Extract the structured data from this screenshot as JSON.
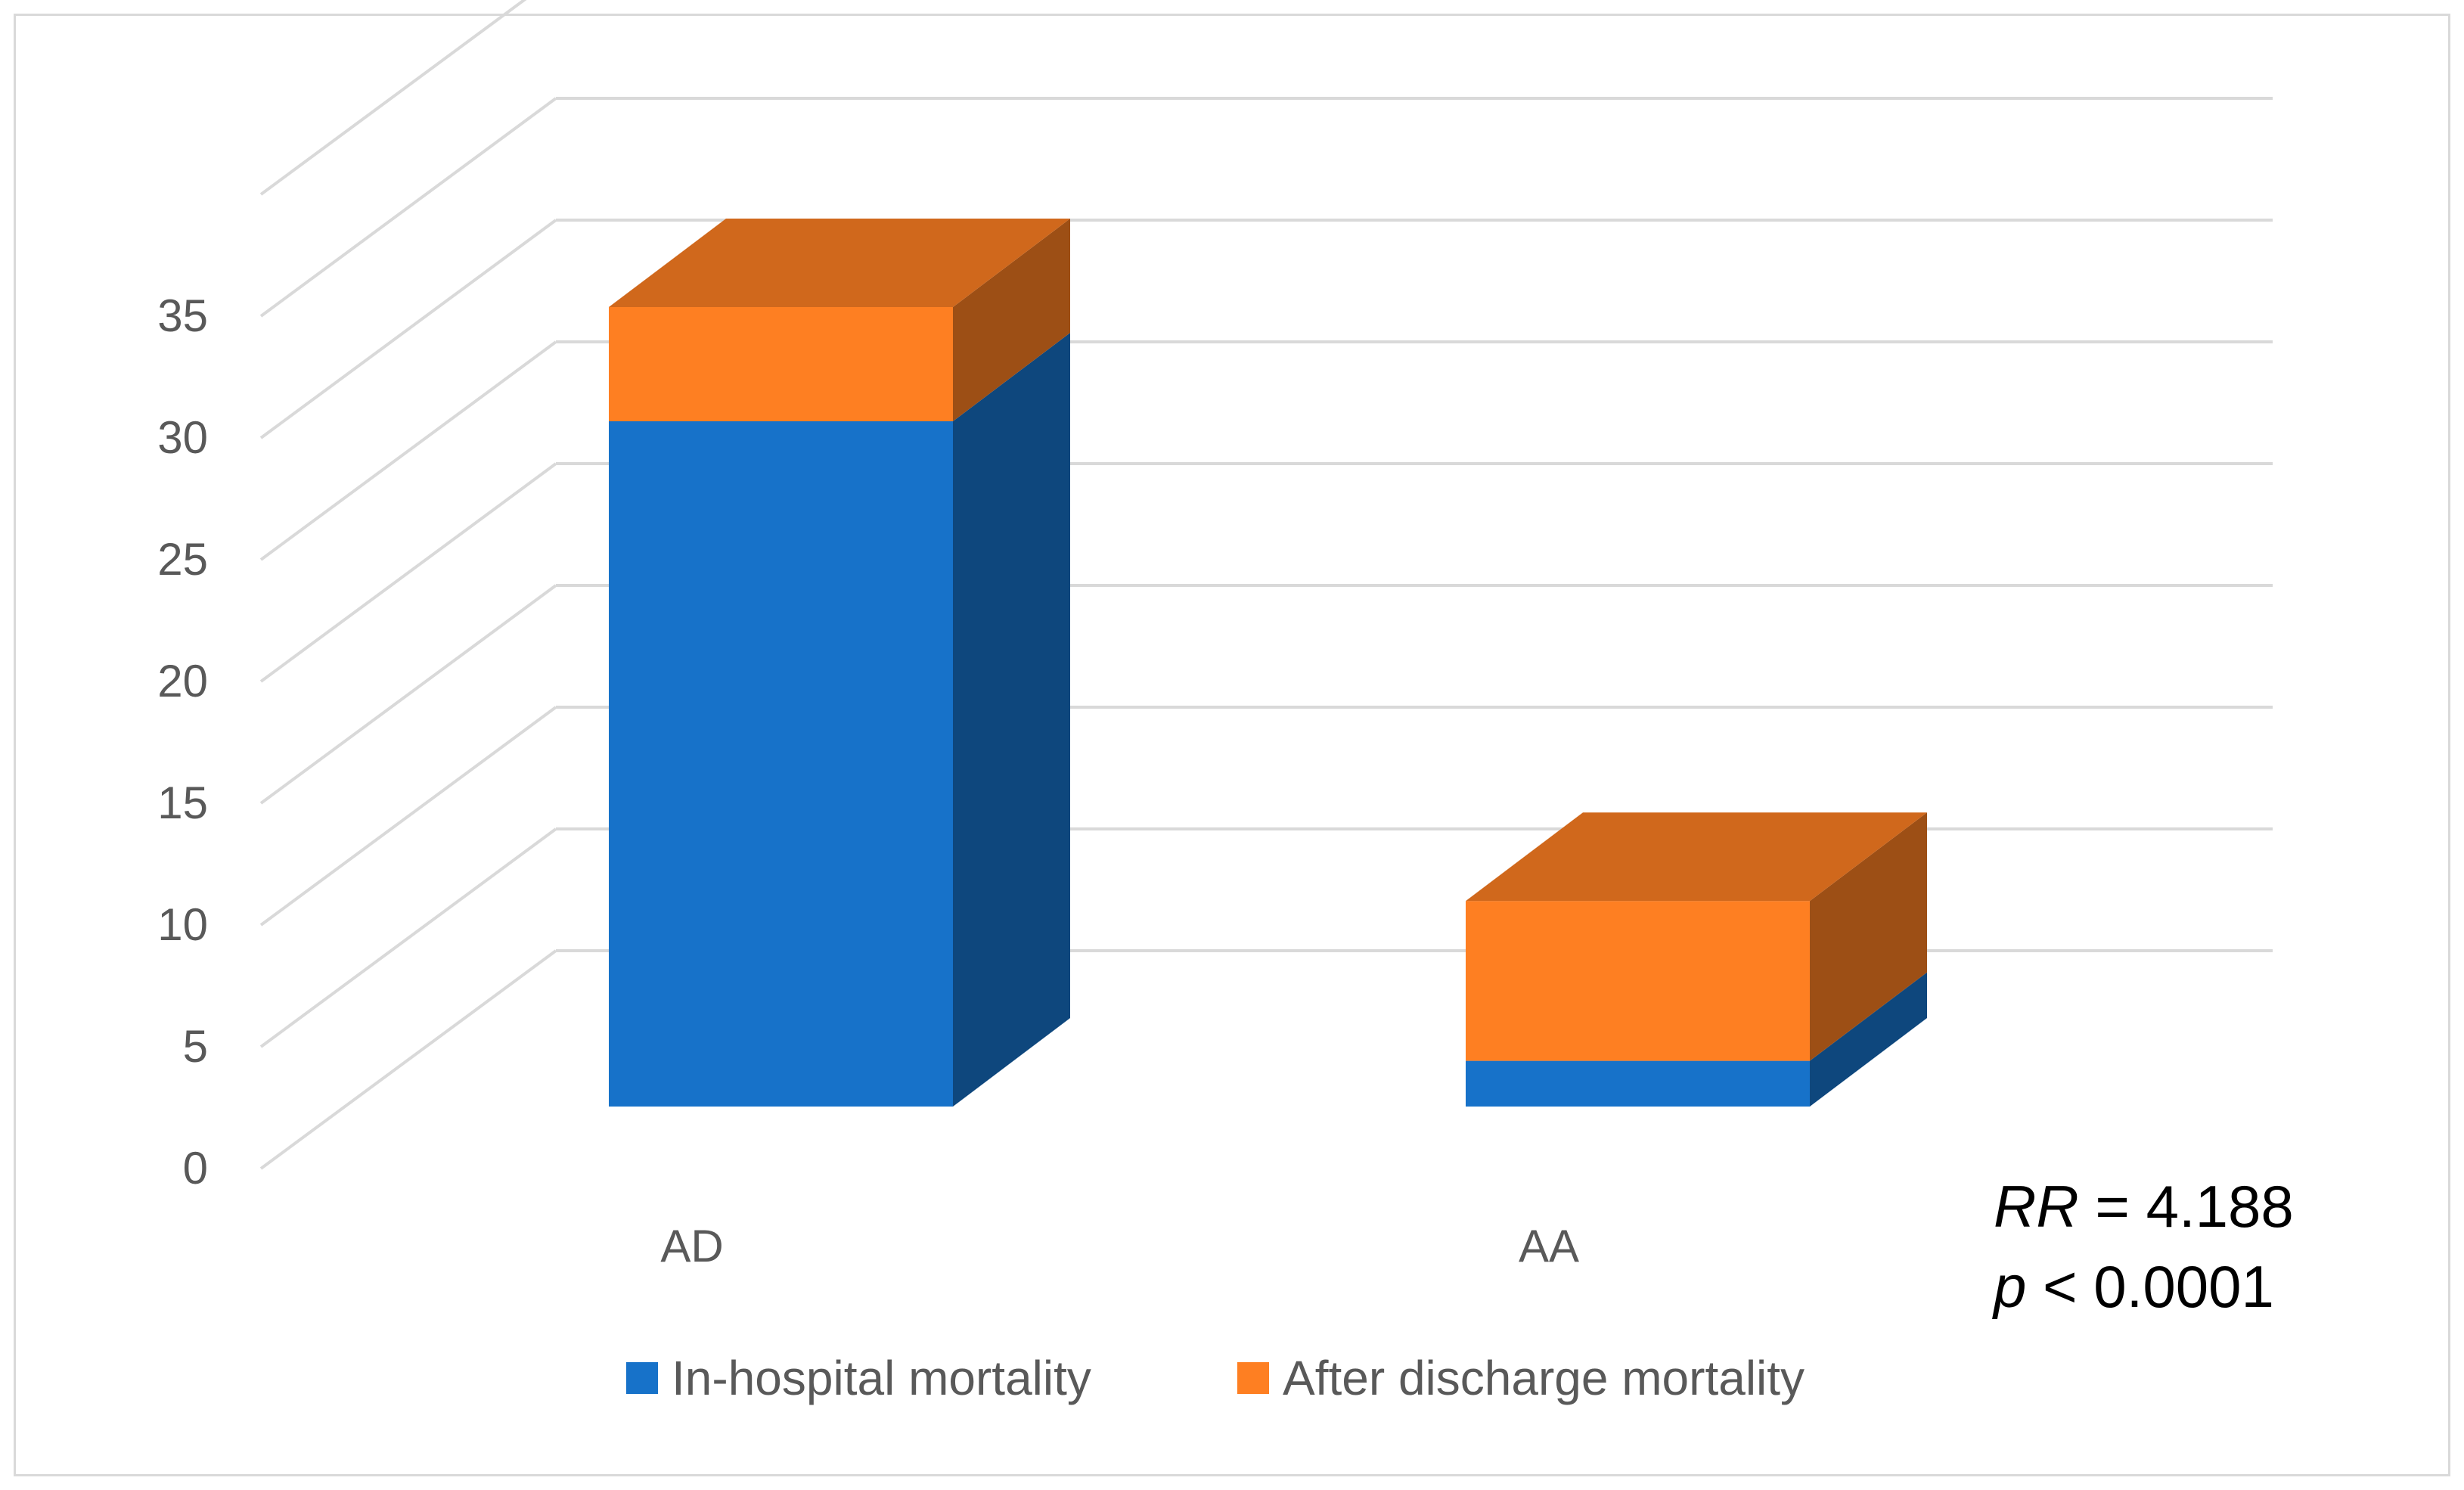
{
  "chart_data": {
    "type": "bar",
    "stacked": true,
    "three_d": true,
    "categories": [
      "AD",
      "AA"
    ],
    "series": [
      {
        "name": "In-hospital mortality",
        "values": [
          30,
          2
        ],
        "color": "#1772c9"
      },
      {
        "name": "After discharge mortality",
        "values": [
          5,
          7
        ],
        "color": "#fe7f22"
      }
    ],
    "yticks": [
      "0",
      "5",
      "10",
      "15",
      "20",
      "25",
      "30",
      "35"
    ],
    "ylim": [
      0,
      35
    ],
    "grid": true,
    "legend_position": "bottom",
    "annotation": {
      "rr_symbol": "RR",
      "rr_rest": " = 4.188",
      "p_symbol": "p",
      "p_rest": " < 0.0001"
    }
  }
}
